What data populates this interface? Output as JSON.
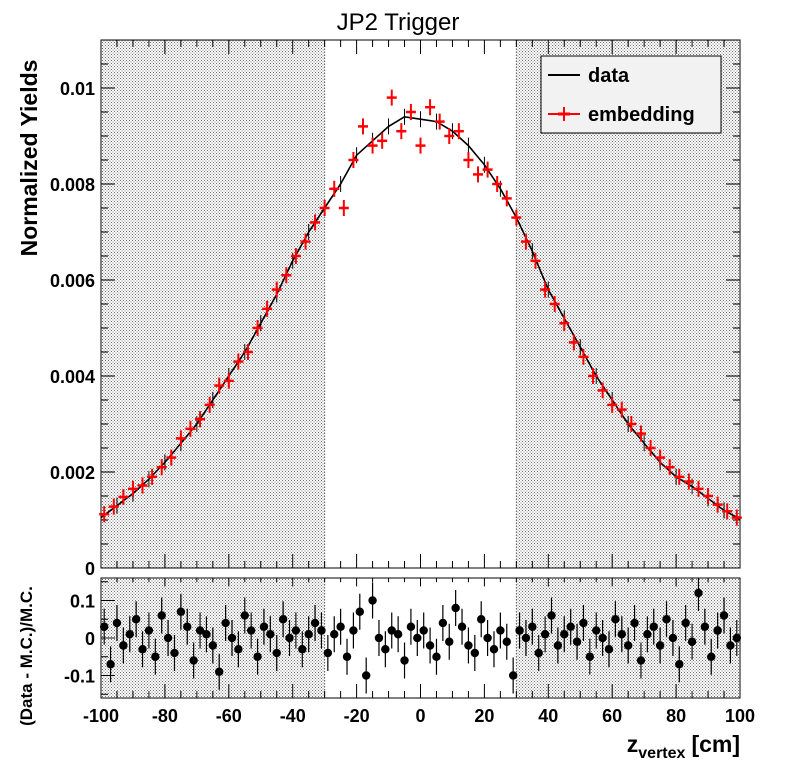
{
  "colors": {
    "data": "#000000",
    "embedding": "#ff0000",
    "ratio": "#000000",
    "shade": "#7a7a7a"
  },
  "chart_data": [
    {
      "type": "scatter",
      "title": "JP2 Trigger",
      "xlabel": "",
      "ylabel": "Normalized Yields",
      "xlim": [
        -100,
        100
      ],
      "ylim": [
        0,
        0.011
      ],
      "yticks": [
        "0",
        "0.002",
        "0.004",
        "0.006",
        "0.008",
        "0.01"
      ],
      "xticks": [
        "-100",
        "-80",
        "-60",
        "-40",
        "-20",
        "0",
        "20",
        "40",
        "60",
        "80",
        "100"
      ],
      "shaded_regions": [
        [
          -100,
          -30
        ],
        [
          30,
          100
        ]
      ],
      "legend": {
        "position": "top-right",
        "entries": [
          "data",
          "embedding"
        ]
      },
      "series": [
        {
          "name": "data",
          "style": "line",
          "x": [
            -100,
            -95,
            -90,
            -85,
            -80,
            -75,
            -70,
            -65,
            -60,
            -55,
            -50,
            -45,
            -40,
            -35,
            -30,
            -25,
            -20,
            -15,
            -10,
            -5,
            0,
            5,
            10,
            15,
            20,
            25,
            30,
            35,
            40,
            45,
            50,
            55,
            60,
            65,
            70,
            75,
            80,
            85,
            90,
            95,
            100
          ],
          "y": [
            0.00105,
            0.0013,
            0.00155,
            0.00185,
            0.0022,
            0.0026,
            0.003,
            0.0035,
            0.004,
            0.0045,
            0.0051,
            0.0057,
            0.0064,
            0.007,
            0.0075,
            0.008,
            0.0086,
            0.0089,
            0.0092,
            0.0094,
            0.00935,
            0.0093,
            0.0091,
            0.0088,
            0.0084,
            0.0079,
            0.0073,
            0.0066,
            0.0058,
            0.0052,
            0.0046,
            0.004,
            0.0035,
            0.003,
            0.0026,
            0.0022,
            0.0019,
            0.0017,
            0.00145,
            0.0012,
            0.00102
          ]
        },
        {
          "name": "embedding",
          "style": "markers",
          "x": [
            -99,
            -96,
            -93,
            -90,
            -87,
            -84,
            -81,
            -78,
            -75,
            -72,
            -69,
            -66,
            -63,
            -60,
            -57,
            -54,
            -51,
            -48,
            -45,
            -42,
            -39,
            -36,
            -33,
            -30,
            -27,
            -24,
            -21,
            -18,
            -15,
            -12,
            -9,
            -6,
            -3,
            0,
            3,
            6,
            9,
            12,
            15,
            18,
            21,
            24,
            27,
            30,
            33,
            36,
            39,
            42,
            45,
            48,
            51,
            54,
            57,
            60,
            63,
            66,
            69,
            72,
            75,
            78,
            81,
            84,
            87,
            90,
            93,
            96,
            99
          ],
          "y": [
            0.00112,
            0.00128,
            0.00148,
            0.00165,
            0.00172,
            0.0019,
            0.0021,
            0.0023,
            0.0027,
            0.0029,
            0.0031,
            0.0034,
            0.0038,
            0.0039,
            0.0043,
            0.0045,
            0.005,
            0.0054,
            0.0058,
            0.0061,
            0.0065,
            0.0068,
            0.0072,
            0.0075,
            0.0079,
            0.0075,
            0.0085,
            0.0092,
            0.0088,
            0.0089,
            0.0098,
            0.0091,
            0.0095,
            0.0088,
            0.0096,
            0.0093,
            0.009,
            0.0091,
            0.0085,
            0.0082,
            0.0083,
            0.008,
            0.0077,
            0.0073,
            0.0068,
            0.0064,
            0.0058,
            0.0055,
            0.0051,
            0.0047,
            0.0044,
            0.004,
            0.0037,
            0.0034,
            0.0033,
            0.003,
            0.0028,
            0.0025,
            0.0023,
            0.0021,
            0.0019,
            0.0018,
            0.00165,
            0.0015,
            0.00132,
            0.00118,
            0.00105
          ]
        }
      ]
    },
    {
      "type": "scatter",
      "title": "",
      "xlabel": "z",
      "xlabel_sub": "vertex",
      "xlabel_unit": "[cm]",
      "ylabel": "(Data - M.C.)/M.C.",
      "xlim": [
        -100,
        100
      ],
      "ylim": [
        -0.16,
        0.16
      ],
      "yticks": [
        "-0.1",
        "0",
        "0.1"
      ],
      "xticks": [
        "-100",
        "-80",
        "-60",
        "-40",
        "-20",
        "0",
        "20",
        "40",
        "60",
        "80",
        "100"
      ],
      "shaded_regions": [
        [
          -100,
          -30
        ],
        [
          30,
          100
        ]
      ],
      "series": [
        {
          "name": "",
          "style": "points-with-errors",
          "x": [
            -99,
            -97,
            -95,
            -93,
            -91,
            -89,
            -87,
            -85,
            -83,
            -81,
            -79,
            -77,
            -75,
            -73,
            -71,
            -69,
            -67,
            -65,
            -63,
            -61,
            -59,
            -57,
            -55,
            -53,
            -51,
            -49,
            -47,
            -45,
            -43,
            -41,
            -39,
            -37,
            -35,
            -33,
            -31,
            -29,
            -27,
            -25,
            -23,
            -21,
            -19,
            -17,
            -15,
            -13,
            -11,
            -9,
            -7,
            -5,
            -3,
            -1,
            1,
            3,
            5,
            7,
            9,
            11,
            13,
            15,
            17,
            19,
            21,
            23,
            25,
            27,
            29,
            31,
            33,
            35,
            37,
            39,
            41,
            43,
            45,
            47,
            49,
            51,
            53,
            55,
            57,
            59,
            61,
            63,
            65,
            67,
            69,
            71,
            73,
            75,
            77,
            79,
            81,
            83,
            85,
            87,
            89,
            91,
            93,
            95,
            97,
            99
          ],
          "y": [
            0.03,
            -0.07,
            0.04,
            -0.02,
            0.01,
            0.05,
            -0.03,
            0.02,
            -0.05,
            0.06,
            0.0,
            -0.04,
            0.07,
            0.03,
            -0.06,
            0.02,
            0.01,
            -0.02,
            -0.09,
            0.04,
            0.0,
            -0.03,
            0.06,
            0.02,
            -0.05,
            0.03,
            0.01,
            -0.04,
            0.05,
            0.0,
            0.02,
            -0.03,
            0.01,
            0.04,
            0.02,
            -0.04,
            0.01,
            0.03,
            -0.05,
            0.02,
            0.07,
            -0.1,
            0.1,
            0.0,
            -0.03,
            0.02,
            0.01,
            -0.06,
            0.03,
            0.0,
            0.02,
            -0.02,
            -0.05,
            0.04,
            -0.01,
            0.08,
            0.03,
            -0.02,
            -0.04,
            0.05,
            0.0,
            -0.03,
            0.02,
            -0.01,
            -0.1,
            0.02,
            0.0,
            0.03,
            -0.04,
            0.01,
            0.06,
            -0.02,
            0.01,
            0.03,
            -0.01,
            0.04,
            -0.05,
            0.02,
            0.0,
            -0.03,
            0.05,
            0.01,
            -0.02,
            0.04,
            -0.06,
            0.01,
            0.03,
            -0.02,
            0.05,
            0.0,
            -0.07,
            0.04,
            -0.01,
            0.12,
            0.03,
            -0.05,
            0.02,
            0.06,
            -0.02,
            0.0
          ]
        }
      ]
    }
  ]
}
